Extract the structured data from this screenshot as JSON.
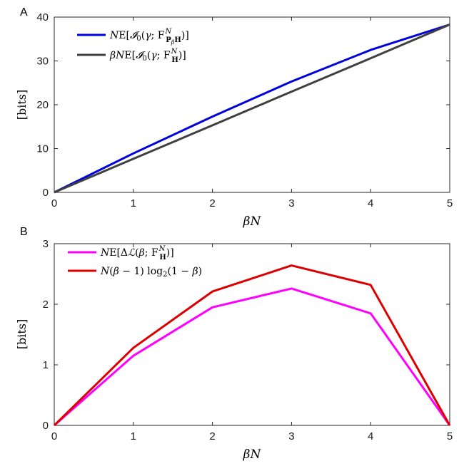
{
  "chart_data": [
    {
      "panel": "A",
      "type": "line",
      "xlabel": "βN",
      "ylabel": "[bits]",
      "xlim": [
        0,
        5
      ],
      "ylim": [
        0,
        40
      ],
      "x_ticks": [
        "0",
        "1",
        "2",
        "3",
        "4",
        "5"
      ],
      "y_ticks": [
        "0",
        "10",
        "20",
        "30",
        "40"
      ],
      "grid": false,
      "legend_position": "top-left",
      "series": [
        {
          "name": "NE[𝓘₀(γ; F^N_{P_βH})]",
          "color": "#0000dd",
          "x": [
            0,
            1,
            2,
            3,
            4,
            5
          ],
          "y": [
            0,
            8.9,
            17.3,
            25.3,
            32.5,
            38.3
          ]
        },
        {
          "name": "βNE[𝓘₀(γ; F^N_H)]",
          "color": "#404040",
          "x": [
            0,
            1,
            2,
            3,
            4,
            5
          ],
          "y": [
            0,
            7.66,
            15.3,
            23.0,
            30.6,
            38.3
          ]
        }
      ]
    },
    {
      "panel": "B",
      "type": "line",
      "xlabel": "βN",
      "ylabel": "[bits]",
      "xlim": [
        0,
        5
      ],
      "ylim": [
        0,
        3
      ],
      "x_ticks": [
        "0",
        "1",
        "2",
        "3",
        "4",
        "5"
      ],
      "y_ticks": [
        "0",
        "1",
        "2",
        "3"
      ],
      "grid": false,
      "legend_position": "top-left",
      "series": [
        {
          "name": "NE[ΔL(β; F^N_H)]",
          "color": "#ff00ff",
          "x": [
            0,
            1,
            2,
            3,
            4,
            5
          ],
          "y": [
            0,
            1.15,
            1.95,
            2.26,
            1.85,
            0
          ]
        },
        {
          "name": "N(β − 1) log₂(1 − β)",
          "color": "#dd0000",
          "x": [
            0,
            1,
            2,
            3,
            4,
            5
          ],
          "y": [
            0,
            1.28,
            2.21,
            2.64,
            2.32,
            0
          ]
        }
      ]
    }
  ]
}
